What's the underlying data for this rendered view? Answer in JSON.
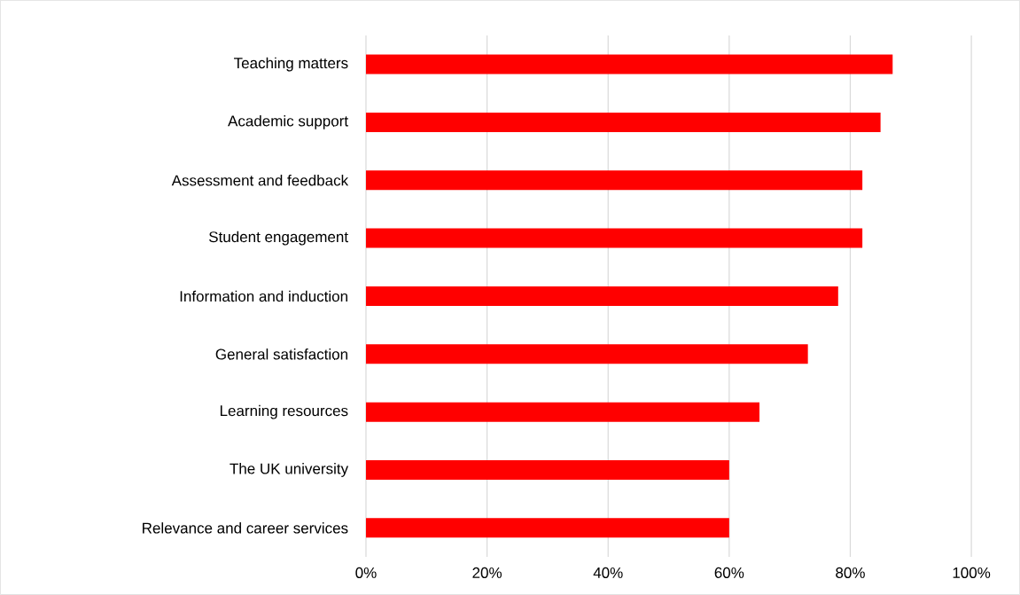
{
  "chart_data": {
    "type": "bar",
    "orientation": "horizontal",
    "categories": [
      "Teaching matters",
      "Academic support",
      "Assessment and feedback",
      "Student engagement",
      "Information and induction",
      "General satisfaction",
      "Learning resources",
      "The UK university",
      "Relevance and career services"
    ],
    "values": [
      87,
      85,
      82,
      82,
      78,
      73,
      65,
      60,
      60
    ],
    "color": "#ff0000",
    "xlim": [
      0,
      100
    ],
    "xticks": [
      {
        "value": 0,
        "label": "0%"
      },
      {
        "value": 20,
        "label": "20%"
      },
      {
        "value": 40,
        "label": "40%"
      },
      {
        "value": 60,
        "label": "60%"
      },
      {
        "value": 80,
        "label": "80%"
      },
      {
        "value": 100,
        "label": "100%"
      }
    ],
    "grid": "x"
  }
}
